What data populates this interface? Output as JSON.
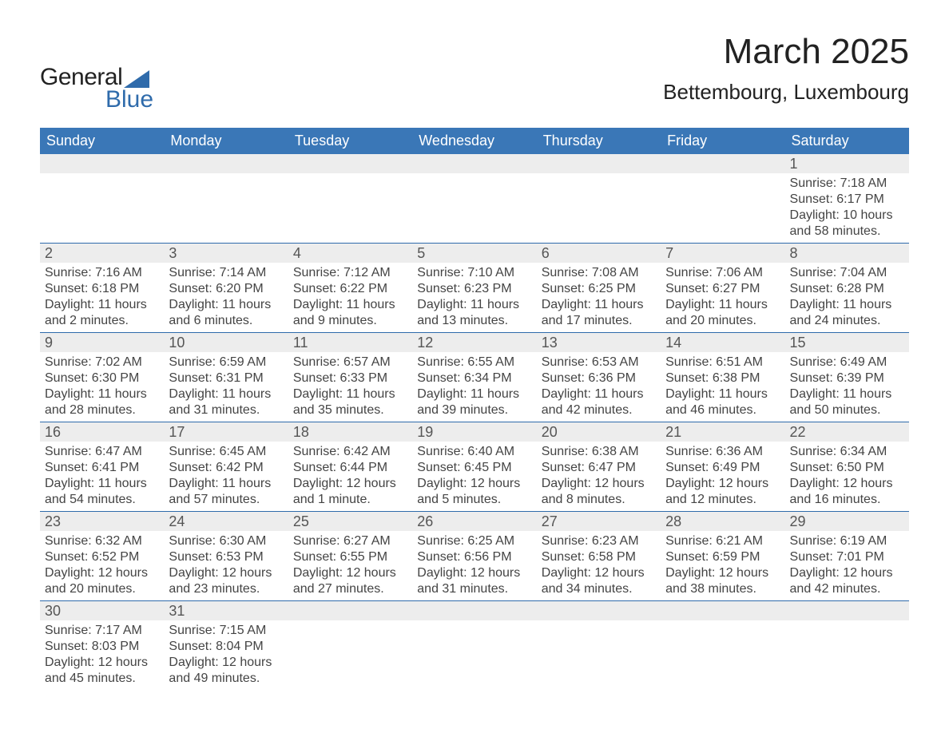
{
  "logo": {
    "text_main": "General",
    "text_sub": "Blue",
    "triangle_color": "#2f6bab"
  },
  "header": {
    "month": "March 2025",
    "location": "Bettembourg, Luxembourg"
  },
  "colors": {
    "header_bg": "#3a77b7",
    "header_text": "#ffffff",
    "daynum_bg": "#ededed",
    "week_border": "#2f6bab",
    "body_text": "#444444",
    "background": "#ffffff"
  },
  "weekdays": [
    "Sunday",
    "Monday",
    "Tuesday",
    "Wednesday",
    "Thursday",
    "Friday",
    "Saturday"
  ],
  "cells": [
    {
      "blank": true
    },
    {
      "blank": true
    },
    {
      "blank": true
    },
    {
      "blank": true
    },
    {
      "blank": true
    },
    {
      "blank": true
    },
    {
      "day": "1",
      "sunrise": "7:18 AM",
      "sunset": "6:17 PM",
      "daylight": "10 hours and 58 minutes."
    },
    {
      "day": "2",
      "sunrise": "7:16 AM",
      "sunset": "6:18 PM",
      "daylight": "11 hours and 2 minutes."
    },
    {
      "day": "3",
      "sunrise": "7:14 AM",
      "sunset": "6:20 PM",
      "daylight": "11 hours and 6 minutes."
    },
    {
      "day": "4",
      "sunrise": "7:12 AM",
      "sunset": "6:22 PM",
      "daylight": "11 hours and 9 minutes."
    },
    {
      "day": "5",
      "sunrise": "7:10 AM",
      "sunset": "6:23 PM",
      "daylight": "11 hours and 13 minutes."
    },
    {
      "day": "6",
      "sunrise": "7:08 AM",
      "sunset": "6:25 PM",
      "daylight": "11 hours and 17 minutes."
    },
    {
      "day": "7",
      "sunrise": "7:06 AM",
      "sunset": "6:27 PM",
      "daylight": "11 hours and 20 minutes."
    },
    {
      "day": "8",
      "sunrise": "7:04 AM",
      "sunset": "6:28 PM",
      "daylight": "11 hours and 24 minutes."
    },
    {
      "day": "9",
      "sunrise": "7:02 AM",
      "sunset": "6:30 PM",
      "daylight": "11 hours and 28 minutes."
    },
    {
      "day": "10",
      "sunrise": "6:59 AM",
      "sunset": "6:31 PM",
      "daylight": "11 hours and 31 minutes."
    },
    {
      "day": "11",
      "sunrise": "6:57 AM",
      "sunset": "6:33 PM",
      "daylight": "11 hours and 35 minutes."
    },
    {
      "day": "12",
      "sunrise": "6:55 AM",
      "sunset": "6:34 PM",
      "daylight": "11 hours and 39 minutes."
    },
    {
      "day": "13",
      "sunrise": "6:53 AM",
      "sunset": "6:36 PM",
      "daylight": "11 hours and 42 minutes."
    },
    {
      "day": "14",
      "sunrise": "6:51 AM",
      "sunset": "6:38 PM",
      "daylight": "11 hours and 46 minutes."
    },
    {
      "day": "15",
      "sunrise": "6:49 AM",
      "sunset": "6:39 PM",
      "daylight": "11 hours and 50 minutes."
    },
    {
      "day": "16",
      "sunrise": "6:47 AM",
      "sunset": "6:41 PM",
      "daylight": "11 hours and 54 minutes."
    },
    {
      "day": "17",
      "sunrise": "6:45 AM",
      "sunset": "6:42 PM",
      "daylight": "11 hours and 57 minutes."
    },
    {
      "day": "18",
      "sunrise": "6:42 AM",
      "sunset": "6:44 PM",
      "daylight": "12 hours and 1 minute."
    },
    {
      "day": "19",
      "sunrise": "6:40 AM",
      "sunset": "6:45 PM",
      "daylight": "12 hours and 5 minutes."
    },
    {
      "day": "20",
      "sunrise": "6:38 AM",
      "sunset": "6:47 PM",
      "daylight": "12 hours and 8 minutes."
    },
    {
      "day": "21",
      "sunrise": "6:36 AM",
      "sunset": "6:49 PM",
      "daylight": "12 hours and 12 minutes."
    },
    {
      "day": "22",
      "sunrise": "6:34 AM",
      "sunset": "6:50 PM",
      "daylight": "12 hours and 16 minutes."
    },
    {
      "day": "23",
      "sunrise": "6:32 AM",
      "sunset": "6:52 PM",
      "daylight": "12 hours and 20 minutes."
    },
    {
      "day": "24",
      "sunrise": "6:30 AM",
      "sunset": "6:53 PM",
      "daylight": "12 hours and 23 minutes."
    },
    {
      "day": "25",
      "sunrise": "6:27 AM",
      "sunset": "6:55 PM",
      "daylight": "12 hours and 27 minutes."
    },
    {
      "day": "26",
      "sunrise": "6:25 AM",
      "sunset": "6:56 PM",
      "daylight": "12 hours and 31 minutes."
    },
    {
      "day": "27",
      "sunrise": "6:23 AM",
      "sunset": "6:58 PM",
      "daylight": "12 hours and 34 minutes."
    },
    {
      "day": "28",
      "sunrise": "6:21 AM",
      "sunset": "6:59 PM",
      "daylight": "12 hours and 38 minutes."
    },
    {
      "day": "29",
      "sunrise": "6:19 AM",
      "sunset": "7:01 PM",
      "daylight": "12 hours and 42 minutes."
    },
    {
      "day": "30",
      "sunrise": "7:17 AM",
      "sunset": "8:03 PM",
      "daylight": "12 hours and 45 minutes."
    },
    {
      "day": "31",
      "sunrise": "7:15 AM",
      "sunset": "8:04 PM",
      "daylight": "12 hours and 49 minutes."
    },
    {
      "blank": true
    },
    {
      "blank": true
    },
    {
      "blank": true
    },
    {
      "blank": true
    },
    {
      "blank": true
    }
  ],
  "labels": {
    "sunrise": "Sunrise: ",
    "sunset": "Sunset: ",
    "daylight": "Daylight: "
  }
}
